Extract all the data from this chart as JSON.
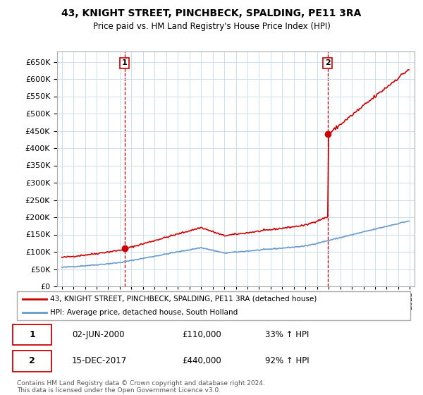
{
  "title": "43, KNIGHT STREET, PINCHBECK, SPALDING, PE11 3RA",
  "subtitle": "Price paid vs. HM Land Registry's House Price Index (HPI)",
  "legend_line1": "43, KNIGHT STREET, PINCHBECK, SPALDING, PE11 3RA (detached house)",
  "legend_line2": "HPI: Average price, detached house, South Holland",
  "transaction1_date": "02-JUN-2000",
  "transaction1_price": 110000,
  "transaction1_hpi": "33% ↑ HPI",
  "transaction2_date": "15-DEC-2017",
  "transaction2_price": 440000,
  "transaction2_hpi": "92% ↑ HPI",
  "footer": "Contains HM Land Registry data © Crown copyright and database right 2024.\nThis data is licensed under the Open Government Licence v3.0.",
  "red_color": "#cc0000",
  "blue_color": "#6699cc",
  "bg_color": "#ffffff",
  "grid_color": "#ccddee",
  "ylim_min": 0,
  "ylim_max": 680000,
  "ytick_step": 50000,
  "x_start_year": 1995,
  "x_end_year": 2025
}
